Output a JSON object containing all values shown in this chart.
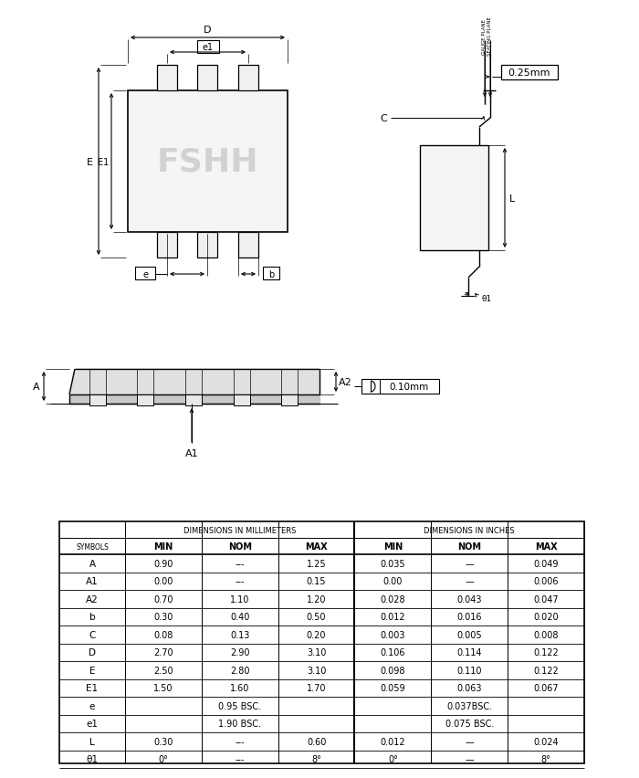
{
  "bg_color": "#ffffff",
  "line_color": "#000000",
  "watermark_text": "FSHH",
  "watermark_color": "#cccccc",
  "table_header1": "DIMENSIONS IN MILLIMETERS",
  "table_header2": "DIMENSIONS IN INCHES",
  "table_rows": [
    [
      "A",
      "0.90",
      "---",
      "1.25",
      "0.035",
      "—",
      "0.049"
    ],
    [
      "A1",
      "0.00",
      "---",
      "0.15",
      "0.00",
      "—",
      "0.006"
    ],
    [
      "A2",
      "0.70",
      "1.10",
      "1.20",
      "0.028",
      "0.043",
      "0.047"
    ],
    [
      "b",
      "0.30",
      "0.40",
      "0.50",
      "0.012",
      "0.016",
      "0.020"
    ],
    [
      "C",
      "0.08",
      "0.13",
      "0.20",
      "0.003",
      "0.005",
      "0.008"
    ],
    [
      "D",
      "2.70",
      "2.90",
      "3.10",
      "0.106",
      "0.114",
      "0.122"
    ],
    [
      "E",
      "2.50",
      "2.80",
      "3.10",
      "0.098",
      "0.110",
      "0.122"
    ],
    [
      "E1",
      "1.50",
      "1.60",
      "1.70",
      "0.059",
      "0.063",
      "0.067"
    ],
    [
      "e",
      "0.95 BSC.",
      "",
      "",
      "0.037BSC.",
      "",
      ""
    ],
    [
      "e1",
      "1.90 BSC.",
      "",
      "",
      "0.075 BSC.",
      "",
      ""
    ],
    [
      "L",
      "0.30",
      "---",
      "0.60",
      "0.012",
      "—",
      "0.024"
    ],
    [
      "θ1",
      "0°",
      "---",
      "8°",
      "0°",
      "—",
      "8°"
    ]
  ]
}
